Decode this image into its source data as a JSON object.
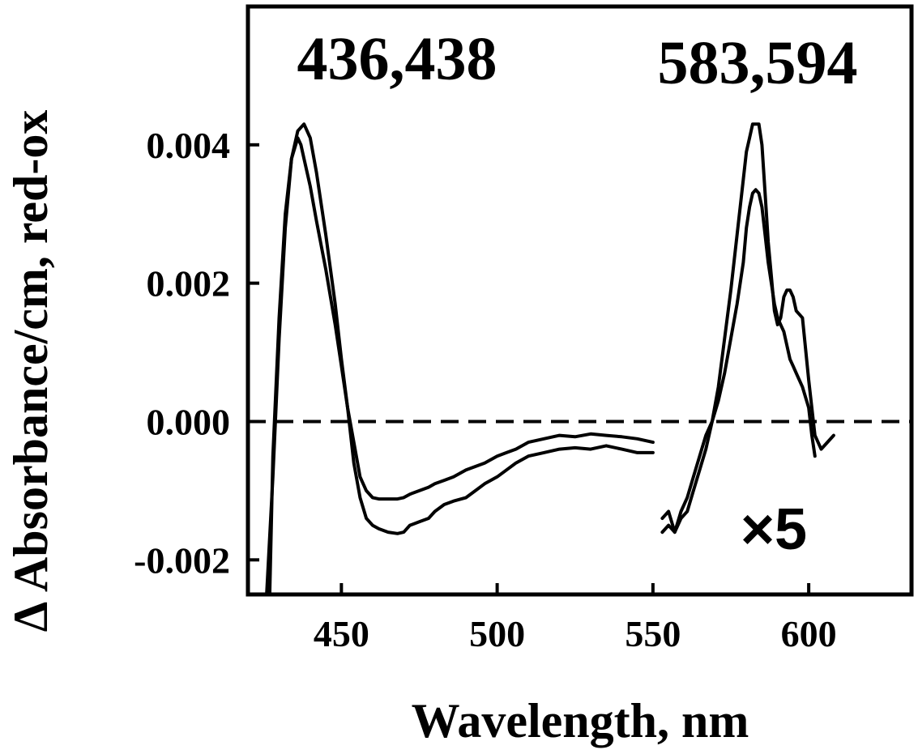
{
  "chart_data": {
    "type": "line",
    "title": "",
    "xlabel": "Wavelength, nm",
    "ylabel": "Δ Absorbance/cm, red-ox",
    "xlim": [
      420,
      633
    ],
    "ylim": [
      -0.0025,
      0.006
    ],
    "x_ticks": [
      450,
      500,
      550,
      600
    ],
    "x_tick_labels": [
      "450",
      "500",
      "550",
      "600"
    ],
    "y_ticks": [
      0.004,
      0.002,
      0.0,
      -0.002
    ],
    "y_tick_labels": [
      "0.004",
      "0.002",
      "0.000",
      "-0.002"
    ],
    "zero_line": {
      "y": 0.0,
      "style": "dashed"
    },
    "annotations": [
      {
        "text": "436,438",
        "position": "top-left"
      },
      {
        "text": "583,594",
        "position": "top-right"
      },
      {
        "text": "×5",
        "position": "lower-right"
      }
    ],
    "series": [
      {
        "segment": "soret",
        "x": [
          427,
          428,
          430,
          432,
          434,
          436,
          437,
          438,
          440,
          442,
          445,
          448,
          450,
          452,
          454,
          456,
          458,
          460,
          462,
          465,
          468,
          470,
          472,
          475,
          478,
          480,
          483,
          486,
          490,
          493,
          496,
          500,
          503,
          506,
          510,
          515,
          520,
          525,
          530,
          535,
          540,
          545,
          550
        ],
        "y": [
          -0.0025,
          -0.0005,
          0.0015,
          0.003,
          0.0038,
          0.0041,
          0.004,
          0.0038,
          0.0034,
          0.0029,
          0.0022,
          0.0014,
          0.0008,
          0.0002,
          -0.0003,
          -0.0008,
          -0.001,
          -0.0011,
          -0.00112,
          -0.00112,
          -0.00112,
          -0.0011,
          -0.00105,
          -0.001,
          -0.00095,
          -0.0009,
          -0.00085,
          -0.0008,
          -0.0007,
          -0.00065,
          -0.0006,
          -0.0005,
          -0.00045,
          -0.0004,
          -0.0003,
          -0.00025,
          -0.0002,
          -0.00022,
          -0.00018,
          -0.0002,
          -0.00022,
          -0.00025,
          -0.0003
        ]
      },
      {
        "segment": "soret",
        "x": [
          426,
          428,
          430,
          432,
          434,
          436,
          438,
          440,
          442,
          445,
          448,
          450,
          452,
          454,
          456,
          458,
          460,
          462,
          465,
          468,
          470,
          472,
          475,
          478,
          480,
          483,
          486,
          490,
          493,
          496,
          500,
          503,
          506,
          510,
          515,
          520,
          525,
          530,
          535,
          540,
          545,
          550
        ],
        "y": [
          -0.0025,
          -0.0008,
          0.0012,
          0.0028,
          0.0038,
          0.0042,
          0.0043,
          0.0041,
          0.0036,
          0.0027,
          0.0017,
          0.0009,
          0.0002,
          -0.0006,
          -0.0011,
          -0.0014,
          -0.0015,
          -0.00155,
          -0.0016,
          -0.00162,
          -0.0016,
          -0.0015,
          -0.00145,
          -0.0014,
          -0.0013,
          -0.0012,
          -0.00115,
          -0.0011,
          -0.001,
          -0.0009,
          -0.0008,
          -0.0007,
          -0.0006,
          -0.0005,
          -0.00045,
          -0.0004,
          -0.00038,
          -0.0004,
          -0.00035,
          -0.0004,
          -0.00045,
          -0.00045
        ]
      },
      {
        "segment": "alpha",
        "x": [
          553,
          555,
          557,
          559,
          561,
          563,
          565,
          567,
          569,
          571,
          573,
          575,
          577,
          579,
          580,
          581,
          582,
          583,
          584,
          585,
          586,
          587,
          588,
          589,
          590,
          591,
          592,
          593,
          594,
          595,
          596,
          598,
          600,
          601,
          602
        ],
        "y": [
          -0.0014,
          -0.0013,
          -0.0016,
          -0.0013,
          -0.0011,
          -0.0008,
          -0.0005,
          -0.0002,
          0.0,
          0.0003,
          0.0007,
          0.0012,
          0.0017,
          0.0023,
          0.0028,
          0.0031,
          0.0033,
          0.00335,
          0.0033,
          0.0031,
          0.0027,
          0.0023,
          0.002,
          0.0017,
          0.0015,
          0.0014,
          0.0013,
          0.0011,
          0.0009,
          0.0008,
          0.0007,
          0.0005,
          0.0002,
          -0.0002,
          -0.0005
        ]
      },
      {
        "segment": "alpha",
        "x": [
          553,
          555,
          557,
          559,
          561,
          563,
          565,
          567,
          569,
          571,
          573,
          575,
          577,
          579,
          580,
          581,
          582,
          583,
          584,
          585,
          586,
          587,
          588,
          589,
          590,
          591,
          592,
          593,
          594,
          595,
          596,
          598,
          600,
          602,
          604,
          606,
          608
        ],
        "y": [
          -0.0016,
          -0.0015,
          -0.0016,
          -0.0014,
          -0.0013,
          -0.001,
          -0.0007,
          -0.0004,
          0.0,
          0.0005,
          0.0012,
          0.0019,
          0.0027,
          0.0035,
          0.0039,
          0.0041,
          0.0043,
          0.0043,
          0.0043,
          0.004,
          0.0033,
          0.0026,
          0.0021,
          0.0016,
          0.0014,
          0.0015,
          0.0018,
          0.0019,
          0.0019,
          0.0018,
          0.0016,
          0.0015,
          0.0006,
          -0.0002,
          -0.0004,
          -0.0003,
          -0.0002
        ]
      }
    ]
  }
}
